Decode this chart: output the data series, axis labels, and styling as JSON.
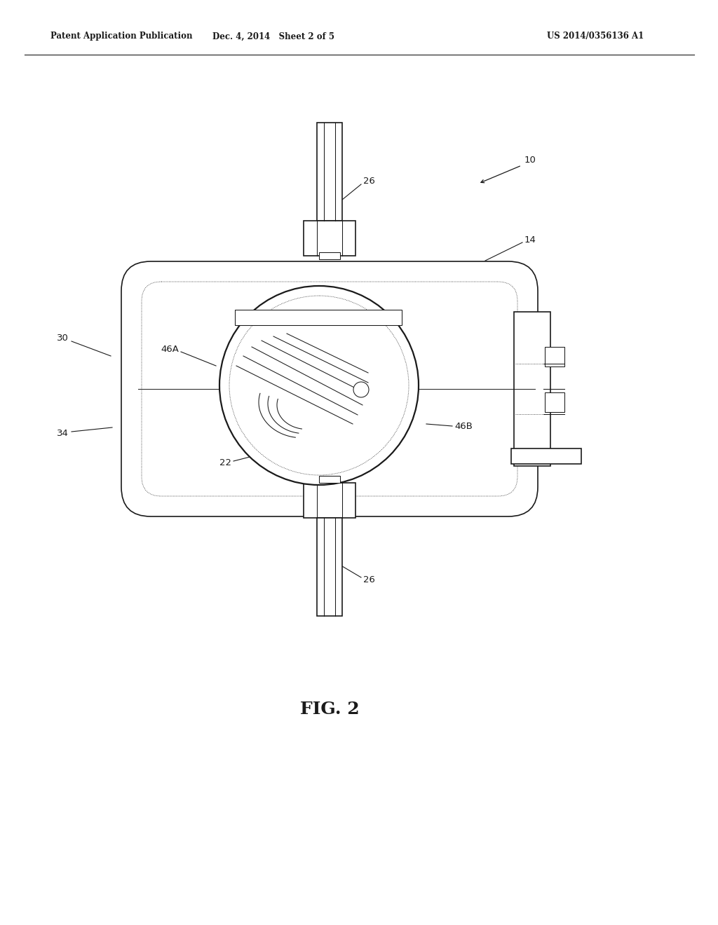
{
  "bg_color": "#ffffff",
  "line_color": "#1a1a1a",
  "header_left": "Patent Application Publication",
  "header_mid": "Dec. 4, 2014   Sheet 2 of 5",
  "header_right": "US 2014/0356136 A1",
  "fig_label": "FIG. 2"
}
